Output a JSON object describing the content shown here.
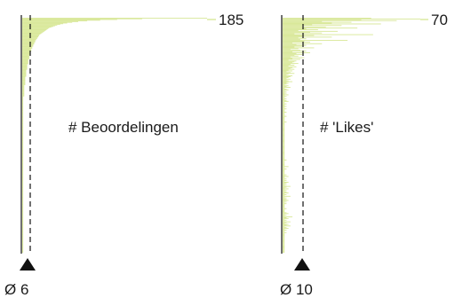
{
  "colors": {
    "bar": "#d9e89a",
    "axis": "#111111",
    "mean_line": "#111111",
    "marker": "#111111"
  },
  "chart_data": [
    {
      "type": "bar",
      "orientation": "horizontal",
      "sorted": "descending",
      "title": "# Beoordelingen",
      "max_value": 185,
      "max_label": "185",
      "mean_value": 6,
      "mean_label": "Ø 6",
      "values": [
        185,
        120,
        95,
        78,
        65,
        56,
        50,
        45,
        41,
        38,
        35,
        33,
        31,
        29,
        27,
        26,
        25,
        24,
        23,
        22,
        21,
        20,
        19,
        18,
        17,
        17,
        16,
        16,
        15,
        15,
        14,
        14,
        13,
        13,
        13,
        12,
        12,
        12,
        11,
        11,
        11,
        10,
        10,
        10,
        9,
        9,
        9,
        9,
        8,
        8,
        8,
        8,
        8,
        7,
        7,
        7,
        7,
        7,
        7,
        6,
        6,
        6,
        6,
        6,
        6,
        6,
        5,
        5,
        5,
        5,
        5,
        5,
        5,
        5,
        4,
        4,
        4,
        4,
        4,
        4,
        4,
        4,
        4,
        4,
        3,
        3,
        3,
        3,
        3,
        3,
        3,
        3,
        3,
        3,
        3,
        3,
        2,
        2,
        2,
        2,
        2,
        2,
        2,
        2,
        2,
        2,
        2,
        2,
        2,
        2,
        2,
        2,
        1,
        1,
        1,
        1,
        1,
        1,
        1,
        1,
        1,
        1,
        1,
        1,
        1,
        1,
        1,
        1,
        1,
        1,
        1,
        1,
        1,
        1,
        1,
        1,
        1,
        1,
        1,
        1,
        1,
        1,
        1,
        1,
        1,
        1,
        1,
        1,
        1,
        1,
        1,
        1,
        1,
        1,
        1,
        1,
        1,
        1,
        1,
        1,
        1,
        1,
        1,
        1,
        1,
        1,
        1,
        1,
        1,
        1,
        1,
        1,
        1,
        1,
        1,
        1,
        1,
        1,
        1,
        1,
        1,
        1,
        1,
        1,
        1,
        1,
        1,
        1,
        1,
        1,
        1,
        1,
        1,
        1,
        1,
        1,
        1,
        1,
        1,
        1,
        1,
        1,
        1,
        1,
        1,
        1,
        1,
        1,
        1,
        1,
        1,
        1,
        1,
        1,
        1,
        1,
        1,
        1,
        1,
        1,
        1,
        1,
        1,
        1,
        1,
        1,
        1,
        1,
        1,
        1,
        1,
        1,
        1,
        1,
        1,
        1,
        1,
        1,
        1,
        1,
        1,
        1,
        1,
        1,
        1,
        1,
        1,
        1,
        1,
        1,
        1,
        1,
        1,
        1,
        1,
        1,
        1,
        1,
        1,
        1,
        1,
        1,
        1,
        1,
        1,
        1,
        1,
        1,
        1,
        1,
        1,
        1,
        1,
        1,
        1,
        1,
        1,
        1,
        1,
        1,
        1,
        1,
        1,
        1,
        1,
        1,
        1,
        1,
        1,
        1,
        1,
        1,
        1,
        1,
        1,
        1,
        1,
        1,
        1,
        1,
        1,
        1,
        1,
        1,
        1,
        1,
        1,
        1,
        1,
        1,
        1,
        1,
        1,
        1,
        1,
        1,
        1,
        1,
        1,
        1,
        1,
        1,
        1,
        1,
        1,
        1,
        1,
        1,
        1,
        1,
        1,
        1,
        1,
        1,
        1
      ]
    },
    {
      "type": "bar",
      "orientation": "horizontal",
      "sorted": "none",
      "title": "# 'Likes'",
      "max_value": 70,
      "max_label": "70",
      "mean_value": 10,
      "mean_label": "Ø 10",
      "values": [
        45,
        70,
        40,
        58,
        20,
        35,
        25,
        50,
        15,
        30,
        10,
        22,
        38,
        12,
        18,
        8,
        28,
        14,
        20,
        6,
        46,
        16,
        10,
        25,
        8,
        12,
        9,
        33,
        11,
        14,
        5,
        20,
        7,
        12,
        10,
        6,
        16,
        8,
        4,
        9,
        12,
        5,
        14,
        7,
        10,
        6,
        8,
        4,
        11,
        5,
        9,
        3,
        7,
        6,
        5,
        8,
        4,
        6,
        3,
        7,
        5,
        4,
        6,
        3,
        5,
        2,
        4,
        6,
        3,
        2,
        5,
        4,
        3,
        2,
        4,
        2,
        3,
        5,
        2,
        3,
        2,
        1,
        3,
        2,
        4,
        1,
        2,
        3,
        1,
        2,
        1,
        2,
        1,
        3,
        1,
        2,
        1,
        1,
        2,
        1,
        2,
        3,
        1,
        1,
        2,
        1,
        1,
        2,
        1,
        1,
        2,
        1,
        1,
        1,
        2,
        1,
        1,
        1,
        1,
        2,
        1,
        1,
        1,
        1,
        1,
        1,
        2,
        1,
        1,
        1,
        1,
        1,
        1,
        1,
        1,
        1,
        1,
        1,
        1,
        1,
        1,
        1,
        1,
        1,
        1,
        1,
        1,
        1,
        1,
        1,
        1,
        1,
        1,
        1,
        1,
        1,
        1,
        1,
        1,
        1,
        1,
        1,
        1,
        1,
        1,
        1,
        1,
        1,
        1,
        1,
        1,
        1,
        2,
        1,
        1,
        1,
        1,
        1,
        1,
        1,
        3,
        1,
        1,
        2,
        1,
        1,
        1,
        1,
        1,
        1,
        2,
        1,
        3,
        1,
        1,
        2,
        1,
        2,
        1,
        3,
        2,
        1,
        2,
        1,
        4,
        2,
        1,
        3,
        1,
        2,
        1,
        2,
        3,
        1,
        2,
        1,
        4,
        1,
        2,
        1,
        2,
        3,
        1,
        2,
        1,
        2,
        1,
        1,
        1,
        1,
        1,
        2,
        1,
        1,
        1,
        1,
        2,
        3,
        1,
        2,
        1,
        5,
        2,
        3,
        1,
        2,
        1,
        4,
        2,
        1,
        3,
        2,
        4,
        1,
        2,
        3,
        1,
        2,
        1,
        1,
        2,
        1,
        1,
        1,
        1,
        1,
        1,
        1,
        1,
        1,
        1,
        1,
        1,
        1,
        1,
        1,
        1,
        1,
        1,
        1,
        1,
        1,
        1,
        1,
        1
      ]
    }
  ]
}
